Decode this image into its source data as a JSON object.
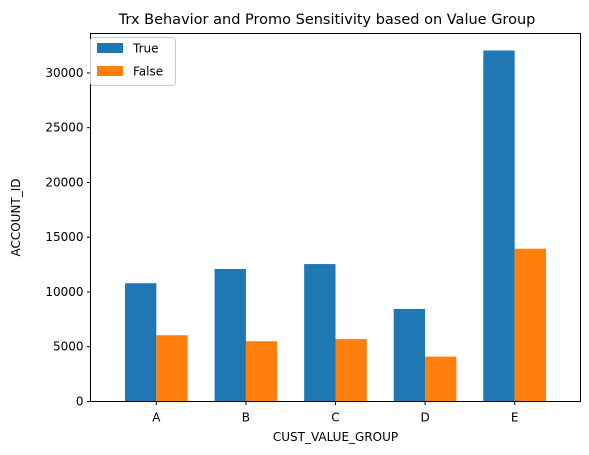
{
  "chart_data": {
    "type": "bar",
    "title": "Trx Behavior and Promo Sensitivity based on Value Group",
    "xlabel": "CUST_VALUE_GROUP",
    "ylabel": "ACCOUNT_ID",
    "categories": [
      "A",
      "B",
      "C",
      "D",
      "E"
    ],
    "series": [
      {
        "name": "True",
        "color": "#1f77b4",
        "values": [
          10800,
          12100,
          12550,
          8450,
          32050
        ]
      },
      {
        "name": "False",
        "color": "#ff7f0e",
        "values": [
          6050,
          5500,
          5700,
          4100,
          13950
        ]
      }
    ],
    "ylim": [
      0,
      33600
    ],
    "yticks": [
      0,
      5000,
      10000,
      15000,
      20000,
      25000,
      30000
    ],
    "legend": "top-left",
    "grid": false
  }
}
